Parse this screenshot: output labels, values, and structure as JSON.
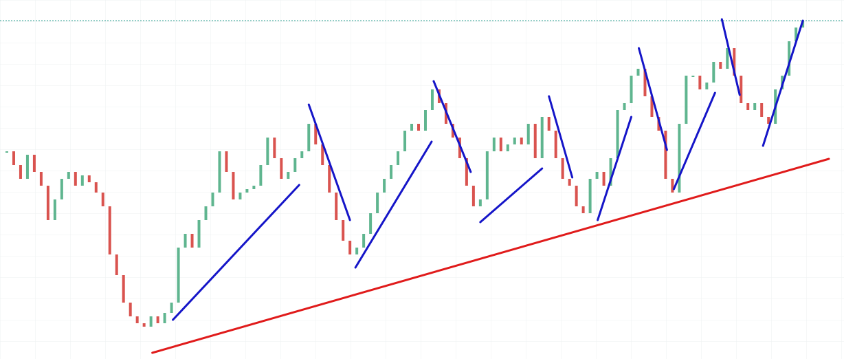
{
  "chart_data": {
    "type": "price-bars",
    "values": [
      302,
      282,
      262,
      297,
      272,
      252,
      202,
      232,
      262,
      272,
      252,
      267,
      257,
      242,
      222,
      152,
      122,
      82,
      62,
      52,
      47,
      62,
      52,
      67,
      82,
      162,
      182,
      162,
      202,
      222,
      242,
      302,
      272,
      232,
      242,
      247,
      252,
      282,
      322,
      292,
      262,
      272,
      292,
      302,
      342,
      312,
      282,
      242,
      202,
      172,
      152,
      162,
      182,
      212,
      242,
      262,
      282,
      302,
      332,
      342,
      332,
      362,
      392,
      372,
      342,
      322,
      292,
      252,
      222,
      232,
      302,
      322,
      302,
      312,
      322,
      312,
      342,
      292,
      352,
      332,
      292,
      262,
      252,
      222,
      212,
      262,
      272,
      252,
      292,
      362,
      372,
      412,
      422,
      382,
      352,
      332,
      262,
      242,
      342,
      412,
      412,
      392,
      402,
      432,
      422,
      452,
      412,
      372,
      362,
      372,
      352,
      342,
      392,
      412,
      462,
      482,
      492
    ],
    "up_color": "#5fb58f",
    "down_color": "#d9534f",
    "xlim": [
      -1,
      122
    ],
    "ylim": [
      0,
      522
    ],
    "hline": {
      "value": 492,
      "color": "#2a9d8f"
    },
    "lines": [
      {
        "color": "#e01b1b",
        "x": [
          21.2,
          119.8
        ],
        "y": [
          9,
          291
        ]
      },
      {
        "color": "#1515c8",
        "x": [
          24.2,
          42.6
        ],
        "y": [
          57,
          253
        ]
      },
      {
        "color": "#1515c8",
        "x": [
          44,
          50
        ],
        "y": [
          370,
          202
        ]
      },
      {
        "color": "#1515c8",
        "x": [
          50.8,
          61.9
        ],
        "y": [
          133,
          316
        ]
      },
      {
        "color": "#1515c8",
        "x": [
          62.2,
          67.6
        ],
        "y": [
          404,
          272
        ]
      },
      {
        "color": "#1515c8",
        "x": [
          69,
          78
        ],
        "y": [
          199,
          277
        ]
      },
      {
        "color": "#1515c8",
        "x": [
          79,
          82.4
        ],
        "y": [
          382,
          264
        ]
      },
      {
        "color": "#1515c8",
        "x": [
          86.1,
          91
        ],
        "y": [
          202,
          352
        ]
      },
      {
        "color": "#1515c8",
        "x": [
          92.1,
          96.2
        ],
        "y": [
          452,
          304
        ]
      },
      {
        "color": "#1515c8",
        "x": [
          97.2,
          103.2
        ],
        "y": [
          247,
          387
        ]
      },
      {
        "color": "#1515c8",
        "x": [
          104.2,
          106.8
        ],
        "y": [
          494,
          384
        ]
      },
      {
        "color": "#1515c8",
        "x": [
          110.2,
          116
        ],
        "y": [
          310,
          492
        ]
      }
    ]
  }
}
